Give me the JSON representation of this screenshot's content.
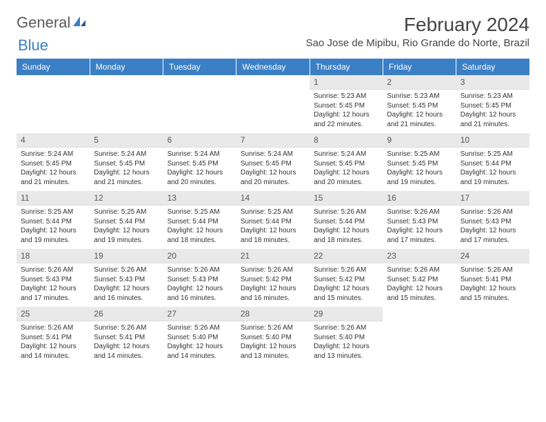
{
  "logo": {
    "word1": "General",
    "word2": "Blue"
  },
  "title": "February 2024",
  "location": "Sao Jose de Mipibu, Rio Grande do Norte, Brazil",
  "colors": {
    "header_bg": "#3b7fc4",
    "header_text": "#ffffff",
    "daynum_bg": "#e9e9e9",
    "body_bg": "#ffffff",
    "text": "#333333"
  },
  "typography": {
    "title_fontsize": 28,
    "location_fontsize": 15,
    "th_fontsize": 12,
    "cell_fontsize": 10
  },
  "labels": {
    "sunrise": "Sunrise:",
    "sunset": "Sunset:",
    "daylight": "Daylight:"
  },
  "weekdays": [
    "Sunday",
    "Monday",
    "Tuesday",
    "Wednesday",
    "Thursday",
    "Friday",
    "Saturday"
  ],
  "weeks": [
    [
      null,
      null,
      null,
      null,
      {
        "n": "1",
        "sunrise": "5:23 AM",
        "sunset": "5:45 PM",
        "daylight": "12 hours and 22 minutes."
      },
      {
        "n": "2",
        "sunrise": "5:23 AM",
        "sunset": "5:45 PM",
        "daylight": "12 hours and 21 minutes."
      },
      {
        "n": "3",
        "sunrise": "5:23 AM",
        "sunset": "5:45 PM",
        "daylight": "12 hours and 21 minutes."
      }
    ],
    [
      {
        "n": "4",
        "sunrise": "5:24 AM",
        "sunset": "5:45 PM",
        "daylight": "12 hours and 21 minutes."
      },
      {
        "n": "5",
        "sunrise": "5:24 AM",
        "sunset": "5:45 PM",
        "daylight": "12 hours and 21 minutes."
      },
      {
        "n": "6",
        "sunrise": "5:24 AM",
        "sunset": "5:45 PM",
        "daylight": "12 hours and 20 minutes."
      },
      {
        "n": "7",
        "sunrise": "5:24 AM",
        "sunset": "5:45 PM",
        "daylight": "12 hours and 20 minutes."
      },
      {
        "n": "8",
        "sunrise": "5:24 AM",
        "sunset": "5:45 PM",
        "daylight": "12 hours and 20 minutes."
      },
      {
        "n": "9",
        "sunrise": "5:25 AM",
        "sunset": "5:45 PM",
        "daylight": "12 hours and 19 minutes."
      },
      {
        "n": "10",
        "sunrise": "5:25 AM",
        "sunset": "5:44 PM",
        "daylight": "12 hours and 19 minutes."
      }
    ],
    [
      {
        "n": "11",
        "sunrise": "5:25 AM",
        "sunset": "5:44 PM",
        "daylight": "12 hours and 19 minutes."
      },
      {
        "n": "12",
        "sunrise": "5:25 AM",
        "sunset": "5:44 PM",
        "daylight": "12 hours and 19 minutes."
      },
      {
        "n": "13",
        "sunrise": "5:25 AM",
        "sunset": "5:44 PM",
        "daylight": "12 hours and 18 minutes."
      },
      {
        "n": "14",
        "sunrise": "5:25 AM",
        "sunset": "5:44 PM",
        "daylight": "12 hours and 18 minutes."
      },
      {
        "n": "15",
        "sunrise": "5:26 AM",
        "sunset": "5:44 PM",
        "daylight": "12 hours and 18 minutes."
      },
      {
        "n": "16",
        "sunrise": "5:26 AM",
        "sunset": "5:43 PM",
        "daylight": "12 hours and 17 minutes."
      },
      {
        "n": "17",
        "sunrise": "5:26 AM",
        "sunset": "5:43 PM",
        "daylight": "12 hours and 17 minutes."
      }
    ],
    [
      {
        "n": "18",
        "sunrise": "5:26 AM",
        "sunset": "5:43 PM",
        "daylight": "12 hours and 17 minutes."
      },
      {
        "n": "19",
        "sunrise": "5:26 AM",
        "sunset": "5:43 PM",
        "daylight": "12 hours and 16 minutes."
      },
      {
        "n": "20",
        "sunrise": "5:26 AM",
        "sunset": "5:43 PM",
        "daylight": "12 hours and 16 minutes."
      },
      {
        "n": "21",
        "sunrise": "5:26 AM",
        "sunset": "5:42 PM",
        "daylight": "12 hours and 16 minutes."
      },
      {
        "n": "22",
        "sunrise": "5:26 AM",
        "sunset": "5:42 PM",
        "daylight": "12 hours and 15 minutes."
      },
      {
        "n": "23",
        "sunrise": "5:26 AM",
        "sunset": "5:42 PM",
        "daylight": "12 hours and 15 minutes."
      },
      {
        "n": "24",
        "sunrise": "5:26 AM",
        "sunset": "5:41 PM",
        "daylight": "12 hours and 15 minutes."
      }
    ],
    [
      {
        "n": "25",
        "sunrise": "5:26 AM",
        "sunset": "5:41 PM",
        "daylight": "12 hours and 14 minutes."
      },
      {
        "n": "26",
        "sunrise": "5:26 AM",
        "sunset": "5:41 PM",
        "daylight": "12 hours and 14 minutes."
      },
      {
        "n": "27",
        "sunrise": "5:26 AM",
        "sunset": "5:40 PM",
        "daylight": "12 hours and 14 minutes."
      },
      {
        "n": "28",
        "sunrise": "5:26 AM",
        "sunset": "5:40 PM",
        "daylight": "12 hours and 13 minutes."
      },
      {
        "n": "29",
        "sunrise": "5:26 AM",
        "sunset": "5:40 PM",
        "daylight": "12 hours and 13 minutes."
      },
      null,
      null
    ]
  ]
}
